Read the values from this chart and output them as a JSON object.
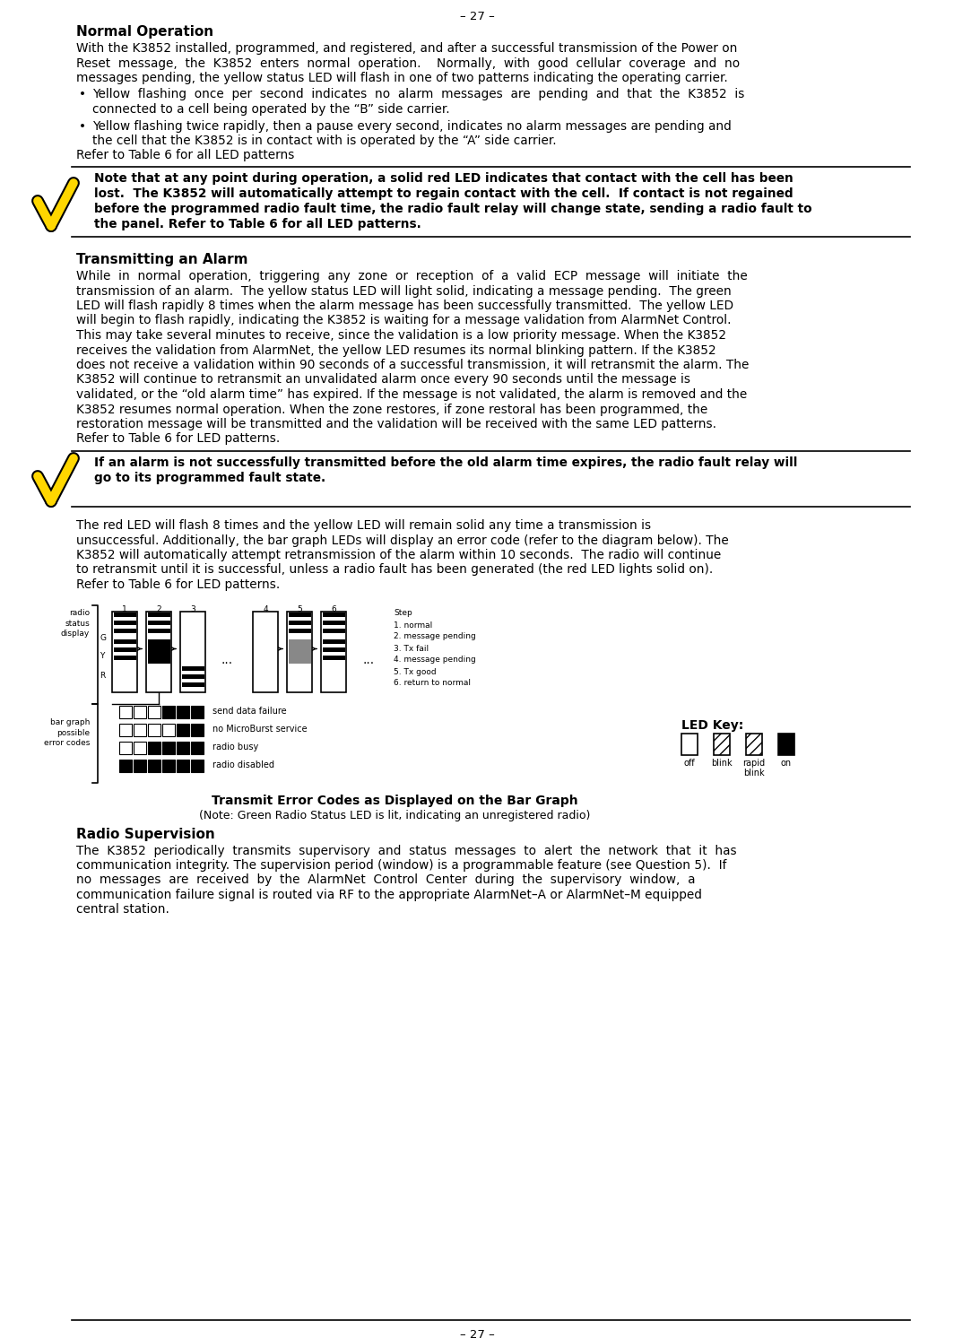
{
  "page_number": "– 27 –",
  "background_color": "#ffffff",
  "title1": "Normal Operation",
  "para1_lines": [
    "With the K3852 installed, programmed, and registered, and after a successful transmission of the Power on",
    "Reset  message,  the  K3852  enters  normal  operation.    Normally,  with  good  cellular  coverage  and  no",
    "messages pending, the yellow status LED will flash in one of two patterns indicating the operating carrier."
  ],
  "bullet1_lines": [
    "Yellow  flashing  once  per  second  indicates  no  alarm  messages  are  pending  and  that  the  K3852  is",
    "connected to a cell being operated by the “B” side carrier."
  ],
  "bullet2_lines": [
    "Yellow flashing twice rapidly, then a pause every second, indicates no alarm messages are pending and",
    "the cell that the K3852 is in contact with is operated by the “A” side carrier."
  ],
  "para1b": "Refer to Table 6 for all LED patterns",
  "note1_lines": [
    "Note that at any point during operation, a solid red LED indicates that contact with the cell has been",
    "lost.  The K3852 will automatically attempt to regain contact with the cell.  If contact is not regained",
    "before the programmed radio fault time, the radio fault relay will change state, sending a radio fault to",
    "the panel. Refer to Table 6 for all LED patterns."
  ],
  "title2": "Transmitting an Alarm",
  "para2_lines": [
    "While  in  normal  operation,  triggering  any  zone  or  reception  of  a  valid  ECP  message  will  initiate  the",
    "transmission of an alarm.  The yellow status LED will light solid, indicating a message pending.  The green",
    "LED will flash rapidly 8 times when the alarm message has been successfully transmitted.  The yellow LED",
    "will begin to flash rapidly, indicating the K3852 is waiting for a message validation from AlarmNet Control.",
    "This may take several minutes to receive, since the validation is a low priority message. When the K3852",
    "receives the validation from AlarmNet, the yellow LED resumes its normal blinking pattern. If the K3852",
    "does not receive a validation within 90 seconds of a successful transmission, it will retransmit the alarm. The",
    "K3852 will continue to retransmit an unvalidated alarm once every 90 seconds until the message is",
    "validated, or the “old alarm time” has expired. If the message is not validated, the alarm is removed and the",
    "K3852 resumes normal operation. When the zone restores, if zone restoral has been programmed, the",
    "restoration message will be transmitted and the validation will be received with the same LED patterns.",
    "Refer to Table 6 for LED patterns."
  ],
  "note2_lines": [
    "If an alarm is not successfully transmitted before the old alarm time expires, the radio fault relay will",
    "go to its programmed fault state."
  ],
  "para3_lines": [
    "The red LED will flash 8 times and the yellow LED will remain solid any time a transmission is",
    "unsuccessful. Additionally, the bar graph LEDs will display an error code (refer to the diagram below). The",
    "K3852 will automatically attempt retransmission of the alarm within 10 seconds.  The radio will continue",
    "to retransmit until it is successful, unless a radio fault has been generated (the red LED lights solid on).",
    "Refer to Table 6 for LED patterns."
  ],
  "diagram_caption": "Transmit Error Codes as Displayed on the Bar Graph",
  "diagram_subcaption": "(Note: Green Radio Status LED is lit, indicating an unregistered radio)",
  "led_key_label": "LED Key:",
  "led_labels": [
    "off",
    "blink",
    "rapid\nblink",
    "on"
  ],
  "title3": "Radio Supervision",
  "para4_lines": [
    "The  K3852  periodically  transmits  supervisory  and  status  messages  to  alert  the  network  that  it  has",
    "communication integrity. The supervision period (window) is a programmable feature (see Question 5).  If",
    "no  messages  are  received  by  the  AlarmNet  Control  Center  during  the  supervisory  window,  a",
    "communication failure signal is routed via RF to the appropriate AlarmNet–A or AlarmNet–M equipped",
    "central station."
  ],
  "checkmark_color": "#FFD700",
  "line_color": "#000000",
  "text_color": "#000000"
}
